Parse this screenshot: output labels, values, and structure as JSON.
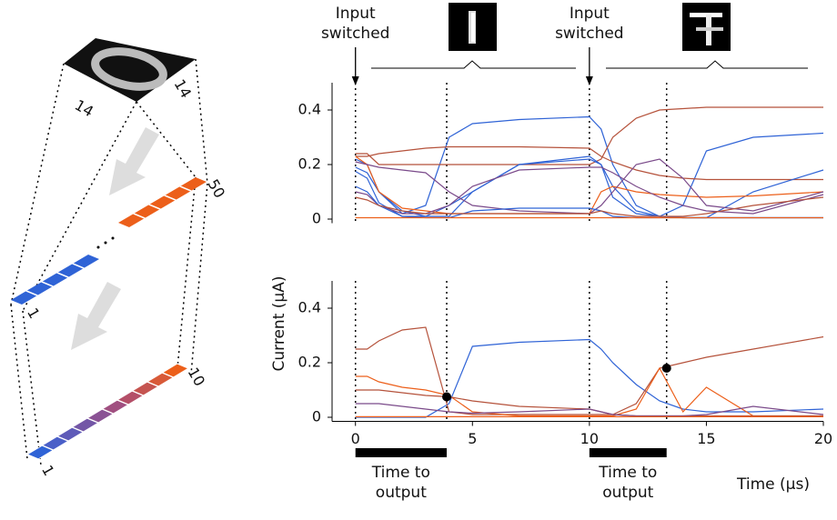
{
  "chart_data": [
    {
      "type": "line",
      "x": [
        0,
        0.5,
        1,
        2,
        3,
        4,
        5,
        7,
        10,
        10.5,
        11,
        12,
        13,
        14,
        15,
        17,
        20
      ],
      "xlim": [
        -1,
        20
      ],
      "ylim": [
        -0.015,
        0.5
      ],
      "yticks": [
        0,
        0.2,
        0.4
      ],
      "series": [
        {
          "color": "#2f63d6",
          "values": [
            0.22,
            0.2,
            0.1,
            0.02,
            0.05,
            0.3,
            0.35,
            0.365,
            0.375,
            0.33,
            0.2,
            0.05,
            0.01,
            0.005,
            0.005,
            0.005,
            0.005
          ]
        },
        {
          "color": "#b5523b",
          "values": [
            0.24,
            0.24,
            0.2,
            0.2,
            0.2,
            0.2,
            0.2,
            0.2,
            0.2,
            0.22,
            0.3,
            0.37,
            0.4,
            0.405,
            0.41,
            0.41,
            0.41
          ]
        },
        {
          "color": "#2f63d6",
          "values": [
            0.19,
            0.17,
            0.1,
            0.03,
            0.01,
            0.05,
            0.1,
            0.2,
            0.22,
            0.2,
            0.12,
            0.03,
            0.01,
            0.05,
            0.25,
            0.3,
            0.315
          ]
        },
        {
          "color": "#b5523b",
          "values": [
            0.23,
            0.23,
            0.24,
            0.25,
            0.26,
            0.265,
            0.265,
            0.265,
            0.26,
            0.23,
            0.21,
            0.18,
            0.16,
            0.15,
            0.145,
            0.145,
            0.145
          ]
        },
        {
          "color": "#2f63d6",
          "values": [
            0.175,
            0.15,
            0.06,
            0.01,
            0.01,
            0.01,
            0.1,
            0.2,
            0.23,
            0.2,
            0.08,
            0.02,
            0.01,
            0.005,
            0.005,
            0.1,
            0.18
          ]
        },
        {
          "color": "#ec5f1a",
          "values": [
            0.23,
            0.2,
            0.1,
            0.04,
            0.03,
            0.02,
            0.02,
            0.02,
            0.02,
            0.1,
            0.12,
            0.1,
            0.09,
            0.085,
            0.08,
            0.085,
            0.1
          ]
        },
        {
          "color": "#7a4a8a",
          "values": [
            0.21,
            0.2,
            0.19,
            0.18,
            0.17,
            0.1,
            0.05,
            0.03,
            0.02,
            0.05,
            0.1,
            0.2,
            0.22,
            0.15,
            0.05,
            0.03,
            0.1
          ]
        },
        {
          "color": "#7a4a8a",
          "values": [
            0.1,
            0.09,
            0.05,
            0.02,
            0.02,
            0.05,
            0.12,
            0.18,
            0.19,
            0.19,
            0.17,
            0.12,
            0.08,
            0.05,
            0.03,
            0.02,
            0.09
          ]
        },
        {
          "color": "#2f63d6",
          "values": [
            0.12,
            0.1,
            0.05,
            0.01,
            0.005,
            0.005,
            0.03,
            0.04,
            0.04,
            0.03,
            0.01,
            0.005,
            0.005,
            0.005,
            0.005,
            0.005,
            0.005
          ]
        },
        {
          "color": "#ec5f1a",
          "values": [
            0.005,
            0.005,
            0.005,
            0.005,
            0.005,
            0.005,
            0.005,
            0.005,
            0.005,
            0.005,
            0.005,
            0.005,
            0.005,
            0.005,
            0.005,
            0.005,
            0.005
          ]
        },
        {
          "color": "#b5523b",
          "values": [
            0.08,
            0.07,
            0.05,
            0.03,
            0.02,
            0.02,
            0.02,
            0.02,
            0.02,
            0.03,
            0.02,
            0.01,
            0.01,
            0.01,
            0.02,
            0.05,
            0.08
          ]
        }
      ]
    },
    {
      "type": "line",
      "x": [
        0,
        0.5,
        1,
        2,
        3,
        4,
        5,
        7,
        10,
        10.5,
        11,
        12,
        13,
        14,
        15,
        17,
        20
      ],
      "xlim": [
        -1,
        20
      ],
      "ylim": [
        -0.015,
        0.5
      ],
      "yticks": [
        0,
        0.2,
        0.4
      ],
      "xticks": [
        0,
        5,
        10,
        15,
        20
      ],
      "series": [
        {
          "color": "#2f63d6",
          "values": [
            0,
            0,
            0,
            0,
            0,
            0.05,
            0.26,
            0.275,
            0.285,
            0.25,
            0.2,
            0.12,
            0.06,
            0.03,
            0.02,
            0.02,
            0.03
          ]
        },
        {
          "color": "#b5523b",
          "values": [
            0.25,
            0.25,
            0.28,
            0.32,
            0.33,
            0.02,
            0.01,
            0.01,
            0.01,
            0.01,
            0.01,
            0.05,
            0.18,
            0.2,
            0.22,
            0.25,
            0.295
          ]
        },
        {
          "color": "#ec5f1a",
          "values": [
            0.15,
            0.15,
            0.13,
            0.11,
            0.1,
            0.08,
            0.02,
            0.005,
            0.005,
            0.005,
            0.005,
            0.03,
            0.18,
            0.02,
            0.11,
            0.005,
            0.005
          ]
        },
        {
          "color": "#b5523b",
          "values": [
            0.1,
            0.1,
            0.1,
            0.09,
            0.08,
            0.075,
            0.06,
            0.04,
            0.03,
            0.02,
            0.01,
            0.005,
            0.005,
            0.005,
            0.005,
            0.005,
            0.005
          ]
        },
        {
          "color": "#7a4a8a",
          "values": [
            0.05,
            0.05,
            0.05,
            0.04,
            0.03,
            0.02,
            0.015,
            0.02,
            0.03,
            0.02,
            0.01,
            0.005,
            0.005,
            0.005,
            0.01,
            0.04,
            0.01
          ]
        },
        {
          "color": "#ec5f1a",
          "values": [
            0.002,
            0.002,
            0.002,
            0.002,
            0.002,
            0.002,
            0.002,
            0.002,
            0.002,
            0.002,
            0.002,
            0.002,
            0.002,
            0.002,
            0.002,
            0.002,
            0.002
          ]
        }
      ],
      "points": [
        {
          "x": 3.9,
          "y": 0.075
        },
        {
          "x": 13.3,
          "y": 0.18
        }
      ]
    }
  ],
  "figure": {
    "y_label": "Current (μA)",
    "x_label": "Time (μs)",
    "vlines": [
      0,
      3.9,
      10,
      13.3
    ],
    "input_switched": [
      {
        "x": 0,
        "text": "Input switched"
      },
      {
        "x": 10,
        "text": "Input switched"
      }
    ],
    "time_to_output": [
      {
        "start": 0,
        "end": 3.9,
        "text": "Time to output"
      },
      {
        "start": 10,
        "end": 13.3,
        "text": "Time to output"
      }
    ]
  },
  "diagram": {
    "image_size": [
      "14",
      "14"
    ],
    "hidden_layer": [
      "1",
      "50"
    ],
    "output_layer": [
      "1",
      "10"
    ]
  }
}
